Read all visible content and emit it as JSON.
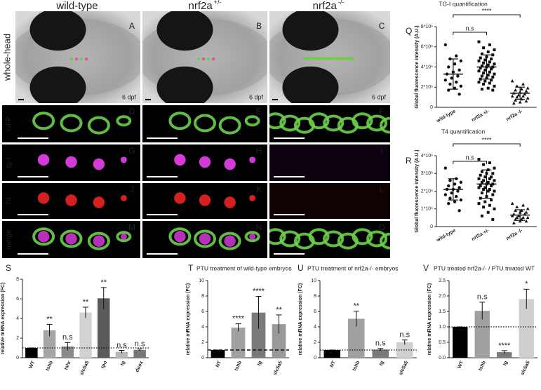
{
  "images": {
    "columns": [
      {
        "label": "wild-type"
      },
      {
        "label": "nrf2a",
        "sup": "+/-"
      },
      {
        "label": "nrf2a",
        "sup": "-/-"
      }
    ],
    "rows": [
      "whole-head",
      "GFP",
      "tg-I",
      "T4",
      "merge"
    ],
    "letters": [
      [
        "A",
        "B",
        "C"
      ],
      [
        "D",
        "E",
        "F"
      ],
      [
        "G",
        "H",
        "I"
      ],
      [
        "J",
        "K",
        "L"
      ],
      [
        "M",
        "N",
        "O"
      ]
    ],
    "stage": "6 dpf"
  },
  "chart_data": [
    {
      "type": "scatter-groups",
      "letter": "Q",
      "title": "TG-I quantification",
      "y_label": "Global fluorescence intensity (A.U.)",
      "categories": [
        "wild-type",
        "nrf2a +/-",
        "nrf2a -/-"
      ],
      "ylim": [
        0,
        8000000
      ],
      "yticks": [
        0,
        {
          "value": 2000000,
          "label": "2*10⁶"
        },
        {
          "value": 4000000,
          "label": "4*10⁶"
        },
        {
          "value": 6000000,
          "label": "6*10⁶"
        },
        {
          "value": 8000000,
          "label": "8*10⁶"
        }
      ],
      "points": [
        [
          6200000,
          5100000,
          4800000,
          4600000,
          4300000,
          4000000,
          3700000,
          3500000,
          3300000,
          3100000,
          2900000,
          2700000,
          2500000,
          2300000,
          2100000,
          1900000,
          1700000,
          1300000
        ],
        [
          6500000,
          6200000,
          5900000,
          5700000,
          5500000,
          5300000,
          5200000,
          5000000,
          4900000,
          4800000,
          4700000,
          4600000,
          4500000,
          4400000,
          4300000,
          4200000,
          4100000,
          4000000,
          4000000,
          3900000,
          3800000,
          3700000,
          3600000,
          3500000,
          3400000,
          3300000,
          3200000,
          3100000,
          3000000,
          2900000,
          2800000,
          2700000,
          2600000,
          2500000,
          2400000,
          2300000,
          2100000,
          1900000,
          1800000,
          1700000
        ],
        [
          2600000,
          2300000,
          2100000,
          1900000,
          1800000,
          1700000,
          1600000,
          1500000,
          1400000,
          1300000,
          1200000,
          1100000,
          1100000,
          1000000,
          900000,
          800000,
          700000,
          600000,
          500000,
          400000
        ]
      ],
      "means": [
        3300000,
        4000000,
        1400000
      ],
      "sd": [
        1500000,
        1200000,
        600000
      ],
      "annotations": [
        "n.s",
        "****"
      ]
    },
    {
      "type": "scatter-groups",
      "letter": "R",
      "title": "T4 quantification",
      "y_label": "Global fluorescence intensity (A.U.)",
      "categories": [
        "wild-type",
        "nrf2a +/-",
        "nrf2a -/-"
      ],
      "ylim": [
        0,
        4000000
      ],
      "yticks": [
        0,
        {
          "value": 1000000,
          "label": "1*10⁶"
        },
        {
          "value": 2000000,
          "label": "2*10⁶"
        },
        {
          "value": 3000000,
          "label": "3*10⁶"
        },
        {
          "value": 4000000,
          "label": "4*10⁶"
        }
      ],
      "points": [
        [
          3300000,
          2700000,
          2600000,
          2500000,
          2400000,
          2300000,
          2200000,
          2100000,
          2100000,
          2000000,
          1900000,
          1800000,
          1700000,
          1600000,
          1500000,
          1400000,
          1300000,
          900000
        ],
        [
          3800000,
          3600000,
          3500000,
          3300000,
          3200000,
          3100000,
          3000000,
          3000000,
          2900000,
          2800000,
          2800000,
          2700000,
          2700000,
          2600000,
          2600000,
          2500000,
          2500000,
          2400000,
          2400000,
          2300000,
          2300000,
          2200000,
          2200000,
          2100000,
          2100000,
          2000000,
          2000000,
          1900000,
          1800000,
          1700000,
          1600000,
          1500000,
          1400000,
          1300000,
          1200000,
          1100000,
          1000000,
          800000,
          600000,
          400000
        ],
        [
          1300000,
          1200000,
          1100000,
          1000000,
          900000,
          900000,
          800000,
          800000,
          700000,
          700000,
          600000,
          600000,
          500000,
          500000,
          500000,
          400000,
          400000,
          300000,
          300000,
          200000
        ]
      ],
      "means": [
        2100000,
        2400000,
        650000
      ],
      "sd": [
        600000,
        800000,
        300000
      ],
      "annotations": [
        "n.s",
        "****"
      ]
    },
    {
      "type": "bar",
      "letter": "S",
      "y_label": "relative mRNA expression (FC)",
      "categories": [
        "WT",
        "tshb",
        "tshr",
        "slc5a5",
        "tpo",
        "tg",
        "duox"
      ],
      "values": [
        1.0,
        2.8,
        1.15,
        4.6,
        6.05,
        0.6,
        0.8
      ],
      "errors": [
        0,
        0.6,
        0.4,
        0.55,
        1.1,
        0.15,
        0.1
      ],
      "significance": [
        null,
        "**",
        "n.s",
        "**",
        "**",
        "n.s",
        "n.s"
      ],
      "colors": [
        "#000000",
        "#a6a6a6",
        "#8a8a8a",
        "#d2d2d2",
        "#5a5a5a",
        "#b8b8b8",
        "#777777"
      ],
      "ylim": [
        0,
        8
      ],
      "yticks": [
        0,
        2,
        4,
        6,
        8
      ],
      "reference_line": 1,
      "reference_line_style": "dotted"
    },
    {
      "type": "bar",
      "letter": "T",
      "title": "PTU treatment of wild-type embryos",
      "y_label": "relative mRNA expression (FC)",
      "categories": [
        "NT",
        "tshb",
        "tg",
        "slc5a5"
      ],
      "values": [
        1,
        3.9,
        5.85,
        4.35
      ],
      "errors": [
        0,
        0.5,
        2.1,
        1.2
      ],
      "significance": [
        null,
        "****",
        "****",
        "**"
      ],
      "colors": [
        "#000000",
        "#a0a0a0",
        "#7a7a7a",
        "#999999"
      ],
      "ylim": [
        0,
        10
      ],
      "yticks": [
        0,
        2,
        4,
        6,
        8,
        10
      ],
      "reference_line": 1,
      "reference_line_style": "dashed"
    },
    {
      "type": "bar",
      "letter": "U",
      "title": "PTU treatment of nrf2a-/- embryos",
      "y_label": "relative mRNA expression (FC)",
      "categories": [
        "NT",
        "tshb",
        "tg",
        "slc5a5"
      ],
      "values": [
        1,
        5.05,
        1.05,
        2.0
      ],
      "errors": [
        0,
        1.0,
        0.15,
        0.3
      ],
      "significance": [
        null,
        "**",
        "n.s",
        "n.s"
      ],
      "colors": [
        "#000000",
        "#a0a0a0",
        "#7a7a7a",
        "#d0d0d0"
      ],
      "ylim": [
        0,
        10
      ],
      "yticks": [
        0,
        2,
        4,
        6,
        8,
        10
      ],
      "reference_line": 1,
      "reference_line_style": "dotted"
    },
    {
      "type": "bar",
      "letter": "V",
      "title": "PTU treated nrf2a-/- / PTU treated WT",
      "y_label": "relative mRNA expression (FC)",
      "categories": [
        "WT",
        "tshb",
        "tg",
        "slc5a5"
      ],
      "values": [
        1.0,
        1.52,
        0.18,
        1.9
      ],
      "errors": [
        0,
        0.28,
        0.05,
        0.32
      ],
      "significance": [
        null,
        "n.s",
        "****",
        "*"
      ],
      "colors": [
        "#000000",
        "#a0a0a0",
        "#7a7a7a",
        "#cfcfcf"
      ],
      "ylim": [
        0,
        2.5
      ],
      "yticks": [
        {
          "value": 0,
          "label": "0.0"
        },
        0.5,
        {
          "value": 1,
          "label": "1.0"
        },
        1.5,
        {
          "value": 2,
          "label": "2.0"
        },
        2.5
      ],
      "reference_line": 1,
      "reference_line_style": "dotted"
    }
  ]
}
